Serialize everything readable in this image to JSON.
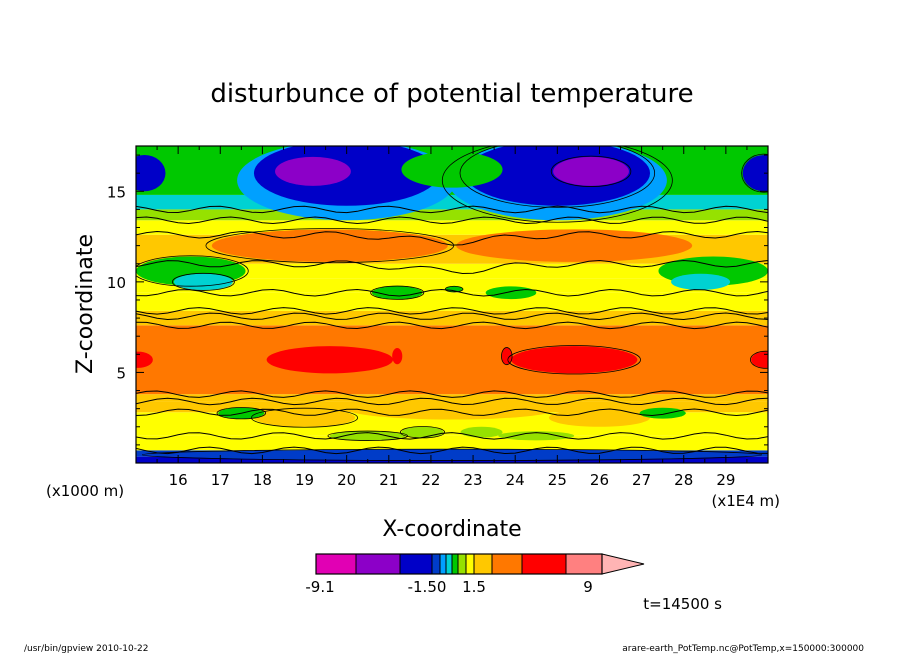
{
  "chart_data": {
    "type": "heatmap",
    "title": "disturbunce of potential temperature",
    "xlabel": "X-coordinate",
    "ylabel": "Z-coordinate",
    "x_unit_label": "(x1E4 m)",
    "y_unit_label": "(x1000 m)",
    "xlim": [
      15.0,
      30.0
    ],
    "ylim": [
      0.0,
      17.5
    ],
    "x_ticks": [
      "16",
      "17",
      "18",
      "19",
      "20",
      "21",
      "22",
      "23",
      "24",
      "25",
      "26",
      "27",
      "28",
      "29"
    ],
    "y_ticks": [
      "5",
      "10",
      "15"
    ],
    "colorbar": {
      "colors": [
        "#e100b4",
        "#8c00c8",
        "#0000c8",
        "#003cc8",
        "#00a0ff",
        "#00d2d2",
        "#00c800",
        "#96e100",
        "#ffff00",
        "#ffc800",
        "#ff7800",
        "#ff0000",
        "#ff8080",
        "#ffb4b4"
      ],
      "tick_labels": [
        "-9.1",
        "-1.50",
        "1.5",
        "9"
      ],
      "pointed_end": "right"
    },
    "bands_by_height": [
      {
        "z": [
          0.0,
          0.5
        ],
        "value": "blue"
      },
      {
        "z": [
          0.5,
          1.5
        ],
        "value": "yellow"
      },
      {
        "z": [
          1.5,
          3.5
        ],
        "value": "yellow / orange"
      },
      {
        "z": [
          3.5,
          7.5
        ],
        "value": "orange"
      },
      {
        "z": [
          7.5,
          9.5
        ],
        "value": "yellow / orange"
      },
      {
        "z": [
          9.5,
          11.0
        ],
        "value": "yellow / green"
      },
      {
        "z": [
          11.0,
          13.0
        ],
        "value": "orange"
      },
      {
        "z": [
          13.0,
          14.5
        ],
        "value": "yellow / green"
      },
      {
        "z": [
          14.5,
          17.5
        ],
        "value": "blue / purple"
      }
    ],
    "time_label": "t=14500 s"
  },
  "footer": {
    "left": "/usr/bin/gpview   2010-10-22",
    "right": "arare-earth_PotTemp.nc@PotTemp,x=150000:300000"
  }
}
